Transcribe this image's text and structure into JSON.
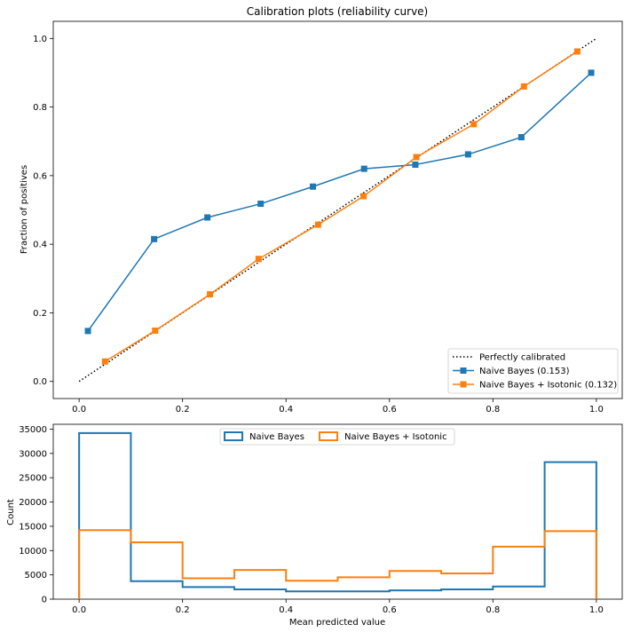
{
  "chart_data": [
    {
      "type": "line",
      "title": "Calibration plots  (reliability curve)",
      "xlabel": "",
      "ylabel": "Fraction of positives",
      "xlim": [
        -0.05,
        1.05
      ],
      "ylim": [
        -0.05,
        1.05
      ],
      "x_ticks": [
        "0.0",
        "0.2",
        "0.4",
        "0.6",
        "0.8",
        "1.0"
      ],
      "y_ticks": [
        "0.0",
        "0.2",
        "0.4",
        "0.6",
        "0.8",
        "1.0"
      ],
      "grid": false,
      "legend_position": "bottom-right",
      "series": [
        {
          "name": "Perfectly calibrated",
          "color": "#000000",
          "style": "dotted",
          "x": [
            0,
            1
          ],
          "y": [
            0,
            1
          ]
        },
        {
          "name": "Naive Bayes (0.153)",
          "color": "#1f77b4",
          "style": "solid",
          "marker": "square",
          "x": [
            0.017,
            0.145,
            0.248,
            0.351,
            0.452,
            0.551,
            0.65,
            0.752,
            0.855,
            0.99
          ],
          "y": [
            0.147,
            0.415,
            0.478,
            0.518,
            0.568,
            0.62,
            0.632,
            0.662,
            0.712,
            0.9
          ]
        },
        {
          "name": "Naive Bayes + Isotonic (0.132)",
          "color": "#ff7f0e",
          "style": "solid",
          "marker": "square",
          "x": [
            0.05,
            0.147,
            0.253,
            0.347,
            0.462,
            0.55,
            0.652,
            0.763,
            0.86,
            0.963
          ],
          "y": [
            0.058,
            0.148,
            0.254,
            0.357,
            0.457,
            0.54,
            0.654,
            0.75,
            0.86,
            0.962
          ]
        }
      ]
    },
    {
      "type": "histogram",
      "title": "",
      "xlabel": "Mean predicted value",
      "ylabel": "Count",
      "xlim": [
        -0.05,
        1.05
      ],
      "ylim": [
        0,
        36000
      ],
      "x_ticks": [
        "0.0",
        "0.2",
        "0.4",
        "0.6",
        "0.8",
        "1.0"
      ],
      "y_ticks": [
        "0",
        "5000",
        "10000",
        "15000",
        "20000",
        "25000",
        "30000",
        "35000"
      ],
      "y_tick_values": [
        0,
        5000,
        10000,
        15000,
        20000,
        25000,
        30000,
        35000
      ],
      "bin_edges": [
        0,
        0.1,
        0.2,
        0.3,
        0.4,
        0.5,
        0.6,
        0.7,
        0.8,
        0.9,
        1.0
      ],
      "legend_position": "top-center",
      "series": [
        {
          "name": "Naive Bayes",
          "color": "#1f77b4",
          "values": [
            34200,
            3700,
            2500,
            2000,
            1600,
            1600,
            1800,
            2000,
            2600,
            28200
          ]
        },
        {
          "name": "Naive Bayes + Isotonic",
          "color": "#ff7f0e",
          "values": [
            14200,
            11700,
            4300,
            6000,
            3800,
            4500,
            5800,
            5300,
            10800,
            14000
          ]
        }
      ]
    }
  ]
}
